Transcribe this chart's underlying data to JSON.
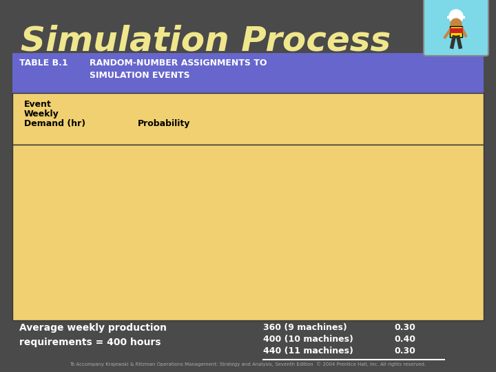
{
  "title": "Simulation Process",
  "title_color": "#F0E68C",
  "bg_color": "#4a4a4a",
  "table_header_bg": "#6666CC",
  "table_label1": "TABLE B.1",
  "table_label2": "RANDOM-NUMBER ASSIGNMENTS TO\nSIMULATION EVENTS",
  "col_header1_line1": "Event",
  "col_header1_line2": "Weekly",
  "col_header1_line3": "Demand (hr)",
  "col_header2": "Probability",
  "table_body_bg": "#F0D070",
  "bottom_left_text": "Average weekly production\nrequirements = 400 hours",
  "bottom_right_data": [
    [
      "360 (9 machines)",
      "0.30"
    ],
    [
      "400 (10 machines)",
      "0.40"
    ],
    [
      "440 (11 machines)",
      "0.30"
    ]
  ],
  "footer_text": "To Accompany Krajewski & Ritzman Operations Management: Strategy and Analysis, Seventh Edition  © 2004 Prentice Hall, Inc. All rights reserved.",
  "footer_color": "#AAAAAA",
  "icon_bg": "#7DD8E8",
  "divider_color": "#FFFFFF"
}
